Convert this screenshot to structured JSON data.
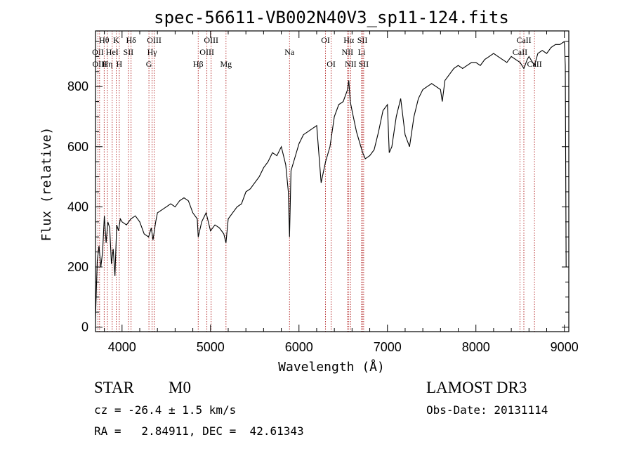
{
  "chart_data": {
    "type": "line",
    "title": "spec-56611-VB002N40V3_sp11-124.fits",
    "xlabel": "Wavelength (Å)",
    "ylabel": "Flux (relative)",
    "xlim": [
      3700,
      9050
    ],
    "ylim": [
      -15,
      985
    ],
    "xticks": [
      4000,
      5000,
      6000,
      7000,
      8000,
      9000
    ],
    "yticks": [
      0,
      200,
      400,
      600,
      800
    ],
    "line_color": "#000000",
    "marker_color": "#b22222",
    "x": [
      3700,
      3720,
      3740,
      3760,
      3780,
      3800,
      3820,
      3840,
      3860,
      3880,
      3900,
      3920,
      3940,
      3960,
      3980,
      4000,
      4050,
      4100,
      4150,
      4200,
      4250,
      4300,
      4330,
      4350,
      4380,
      4400,
      4450,
      4500,
      4550,
      4600,
      4650,
      4700,
      4750,
      4800,
      4850,
      4861,
      4900,
      4950,
      5000,
      5050,
      5100,
      5150,
      5175,
      5200,
      5250,
      5300,
      5350,
      5400,
      5450,
      5500,
      5550,
      5600,
      5650,
      5700,
      5750,
      5800,
      5850,
      5880,
      5893,
      5910,
      5950,
      6000,
      6050,
      6100,
      6150,
      6200,
      6250,
      6300,
      6350,
      6400,
      6450,
      6500,
      6550,
      6563,
      6580,
      6600,
      6650,
      6700,
      6720,
      6750,
      6800,
      6850,
      6900,
      6950,
      7000,
      7020,
      7050,
      7100,
      7150,
      7200,
      7250,
      7300,
      7350,
      7400,
      7450,
      7500,
      7550,
      7600,
      7620,
      7650,
      7700,
      7750,
      7800,
      7850,
      7900,
      7950,
      8000,
      8050,
      8100,
      8150,
      8200,
      8250,
      8300,
      8350,
      8400,
      8450,
      8500,
      8542,
      8580,
      8600,
      8662,
      8700,
      8750,
      8800,
      8850,
      8900,
      8950,
      9000,
      9010,
      9020
    ],
    "y": [
      30,
      220,
      270,
      200,
      250,
      370,
      280,
      350,
      330,
      210,
      260,
      170,
      340,
      320,
      360,
      350,
      340,
      360,
      370,
      350,
      310,
      300,
      330,
      290,
      350,
      380,
      390,
      400,
      410,
      400,
      420,
      430,
      420,
      380,
      360,
      300,
      350,
      380,
      320,
      340,
      330,
      310,
      280,
      360,
      380,
      400,
      410,
      450,
      460,
      480,
      500,
      530,
      550,
      580,
      570,
      600,
      540,
      450,
      300,
      520,
      560,
      610,
      640,
      650,
      660,
      670,
      480,
      550,
      600,
      700,
      740,
      750,
      790,
      820,
      750,
      720,
      650,
      600,
      580,
      560,
      570,
      590,
      650,
      720,
      740,
      580,
      600,
      700,
      760,
      640,
      600,
      700,
      760,
      790,
      800,
      810,
      800,
      790,
      750,
      820,
      840,
      860,
      870,
      860,
      870,
      880,
      880,
      870,
      890,
      900,
      910,
      900,
      890,
      880,
      900,
      890,
      880,
      860,
      890,
      900,
      870,
      910,
      920,
      910,
      930,
      940,
      940,
      950,
      870,
      200
    ],
    "lines": [
      {
        "label": "Hθ",
        "wave": 3798,
        "row": 0
      },
      {
        "label": "OII",
        "wave": 3727,
        "row": 1
      },
      {
        "label": "OIII",
        "wave": 3746,
        "row": 2
      },
      {
        "label": "Hη",
        "wave": 3835,
        "row": 2
      },
      {
        "label": "HeI",
        "wave": 3889,
        "row": 1
      },
      {
        "label": "K",
        "wave": 3934,
        "row": 0
      },
      {
        "label": "SII",
        "wave": 4072,
        "row": 1
      },
      {
        "label": "H",
        "wave": 3969,
        "row": 2
      },
      {
        "label": "Hδ",
        "wave": 4102,
        "row": 0
      },
      {
        "label": "OIII",
        "wave": 4363,
        "row": 0
      },
      {
        "label": "Hγ",
        "wave": 4340,
        "row": 1
      },
      {
        "label": "G",
        "wave": 4304,
        "row": 2
      },
      {
        "label": "Hβ",
        "wave": 4861,
        "row": 2
      },
      {
        "label": "OIII",
        "wave": 5007,
        "row": 0
      },
      {
        "label": "OIII",
        "wave": 4959,
        "row": 1
      },
      {
        "label": "Mg",
        "wave": 5175,
        "row": 2
      },
      {
        "label": "Na",
        "wave": 5893,
        "row": 1
      },
      {
        "label": "OI",
        "wave": 6300,
        "row": 0
      },
      {
        "label": "OI",
        "wave": 6364,
        "row": 2
      },
      {
        "label": "Hα",
        "wave": 6563,
        "row": 0
      },
      {
        "label": "NII",
        "wave": 6548,
        "row": 1
      },
      {
        "label": "NII",
        "wave": 6584,
        "row": 2
      },
      {
        "label": "SII",
        "wave": 6717,
        "row": 0
      },
      {
        "label": "Li",
        "wave": 6708,
        "row": 1
      },
      {
        "label": "SII",
        "wave": 6731,
        "row": 2
      },
      {
        "label": "CaII",
        "wave": 8542,
        "row": 0
      },
      {
        "label": "CaII",
        "wave": 8498,
        "row": 1
      },
      {
        "label": "CaII",
        "wave": 8662,
        "row": 2
      }
    ]
  },
  "info": {
    "object_class": "STAR",
    "subclass": "M0",
    "survey": "LAMOST DR3",
    "cz": "cz = -26.4 ± 1.5 km/s",
    "obs_date": "Obs-Date: 20131114",
    "coords": "RA =   2.84911, DEC =  42.61343"
  }
}
